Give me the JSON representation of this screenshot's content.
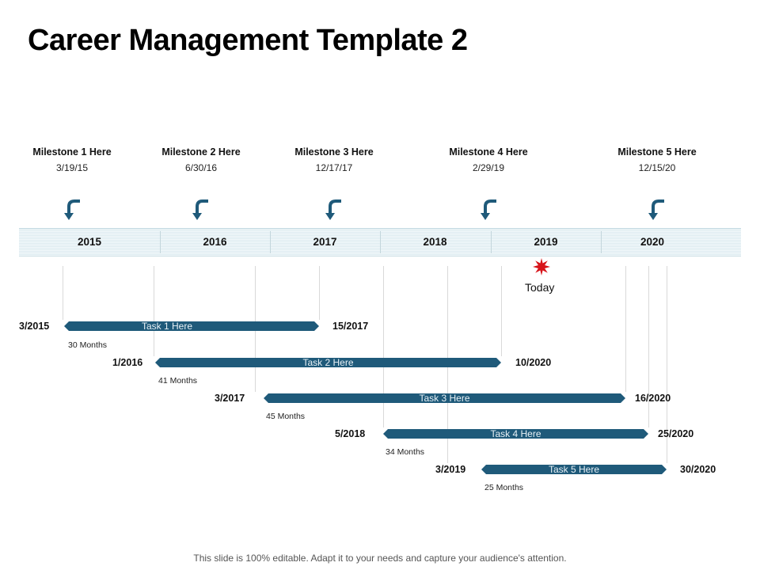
{
  "title": "Career Management Template 2",
  "milestones": [
    {
      "label": "Milestone 1 Here",
      "date": "3/19/15"
    },
    {
      "label": "Milestone 2 Here",
      "date": "6/30/16"
    },
    {
      "label": "Milestone 3 Here",
      "date": "12/17/17"
    },
    {
      "label": "Milestone 4 Here",
      "date": "2/29/19"
    },
    {
      "label": "Milestone 5 Here",
      "date": "12/15/20"
    }
  ],
  "years": [
    "2015",
    "2016",
    "2017",
    "2018",
    "2019",
    "2020"
  ],
  "today": {
    "label": "Today"
  },
  "tasks": [
    {
      "label": "Task 1 Here",
      "start": "3/2015",
      "end": "15/2017",
      "duration": "30 Months"
    },
    {
      "label": "Task 2 Here",
      "start": "1/2016",
      "end": "10/2020",
      "duration": "41 Months"
    },
    {
      "label": "Task 3 Here",
      "start": "3/2017",
      "end": "16/2020",
      "duration": "45 Months"
    },
    {
      "label": "Task 4 Here",
      "start": "5/2018",
      "end": "25/2020",
      "duration": "34 Months"
    },
    {
      "label": "Task 5 Here",
      "start": "3/2019",
      "end": "30/2020",
      "duration": "25 Months"
    }
  ],
  "colors": {
    "task_bar": "#1f5a7a",
    "arrow": "#1f5a7a",
    "star": "#d7141a"
  },
  "footer": "This slide is 100% editable. Adapt it to your needs and capture your audience's attention."
}
